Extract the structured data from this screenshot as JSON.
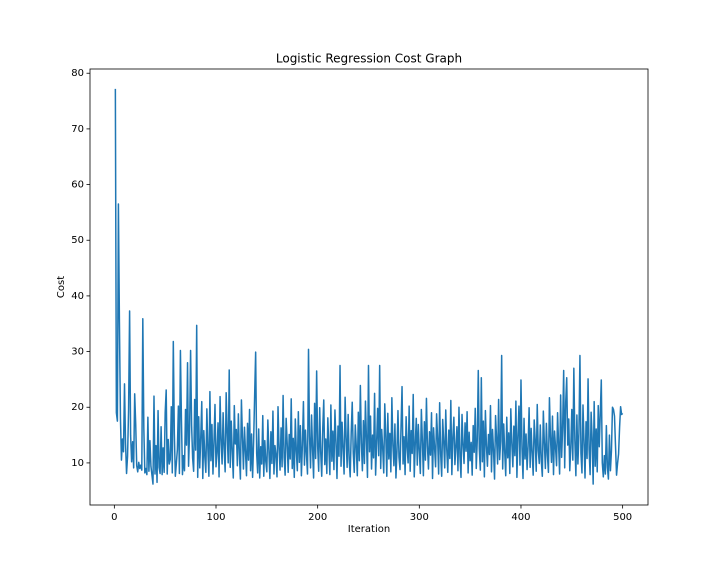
{
  "chart_data": {
    "type": "line",
    "title": "Logistic Regression Cost Graph",
    "x_label": "Iteration",
    "y_label": "Cost",
    "color": "#1f77b4",
    "xlim": [
      -23.95,
      524.95
    ],
    "xticks": [
      0,
      100,
      200,
      300,
      400,
      500
    ],
    "ylim": [
      2.44,
      80.76
    ],
    "yticks": [
      10,
      20,
      30,
      40,
      50,
      60,
      70,
      80
    ],
    "grid": false,
    "x": [
      1,
      2,
      3,
      4,
      5,
      6,
      7,
      8,
      9,
      10,
      11,
      12,
      13,
      14,
      15,
      16,
      17,
      18,
      19,
      20,
      21,
      22,
      23,
      24,
      25,
      26,
      27,
      28,
      29,
      30,
      31,
      32,
      33,
      34,
      35,
      36,
      37,
      38,
      39,
      40,
      41,
      42,
      43,
      44,
      45,
      46,
      47,
      48,
      49,
      50,
      51,
      52,
      53,
      54,
      55,
      56,
      57,
      58,
      59,
      60,
      61,
      62,
      63,
      64,
      65,
      66,
      67,
      68,
      69,
      70,
      71,
      72,
      73,
      74,
      75,
      76,
      77,
      78,
      79,
      80,
      81,
      82,
      83,
      84,
      85,
      86,
      87,
      88,
      89,
      90,
      91,
      92,
      93,
      94,
      95,
      96,
      97,
      98,
      99,
      100,
      101,
      102,
      103,
      104,
      105,
      106,
      107,
      108,
      109,
      110,
      111,
      112,
      113,
      114,
      115,
      116,
      117,
      118,
      119,
      120,
      121,
      122,
      123,
      124,
      125,
      126,
      127,
      128,
      129,
      130,
      131,
      132,
      133,
      134,
      135,
      136,
      137,
      138,
      139,
      140,
      141,
      142,
      143,
      144,
      145,
      146,
      147,
      148,
      149,
      150,
      151,
      152,
      153,
      154,
      155,
      156,
      157,
      158,
      159,
      160,
      161,
      162,
      163,
      164,
      165,
      166,
      167,
      168,
      169,
      170,
      171,
      172,
      173,
      174,
      175,
      176,
      177,
      178,
      179,
      180,
      181,
      182,
      183,
      184,
      185,
      186,
      187,
      188,
      189,
      190,
      191,
      192,
      193,
      194,
      195,
      196,
      197,
      198,
      199,
      200,
      201,
      202,
      203,
      204,
      205,
      206,
      207,
      208,
      209,
      210,
      211,
      212,
      213,
      214,
      215,
      216,
      217,
      218,
      219,
      220,
      221,
      222,
      223,
      224,
      225,
      226,
      227,
      228,
      229,
      230,
      231,
      232,
      233,
      234,
      235,
      236,
      237,
      238,
      239,
      240,
      241,
      242,
      243,
      244,
      245,
      246,
      247,
      248,
      249,
      250,
      251,
      252,
      253,
      254,
      255,
      256,
      257,
      258,
      259,
      260,
      261,
      262,
      263,
      264,
      265,
      266,
      267,
      268,
      269,
      270,
      271,
      272,
      273,
      274,
      275,
      276,
      277,
      278,
      279,
      280,
      281,
      282,
      283,
      284,
      285,
      286,
      287,
      288,
      289,
      290,
      291,
      292,
      293,
      294,
      295,
      296,
      297,
      298,
      299,
      300,
      301,
      302,
      303,
      304,
      305,
      306,
      307,
      308,
      309,
      310,
      311,
      312,
      313,
      314,
      315,
      316,
      317,
      318,
      319,
      320,
      321,
      322,
      323,
      324,
      325,
      326,
      327,
      328,
      329,
      330,
      331,
      332,
      333,
      334,
      335,
      336,
      337,
      338,
      339,
      340,
      341,
      342,
      343,
      344,
      345,
      346,
      347,
      348,
      349,
      350,
      351,
      352,
      353,
      354,
      355,
      356,
      357,
      358,
      359,
      360,
      361,
      362,
      363,
      364,
      365,
      366,
      367,
      368,
      369,
      370,
      371,
      372,
      373,
      374,
      375,
      376,
      377,
      378,
      379,
      380,
      381,
      382,
      383,
      384,
      385,
      386,
      387,
      388,
      389,
      390,
      391,
      392,
      393,
      394,
      395,
      396,
      397,
      398,
      399,
      400,
      401,
      402,
      403,
      404,
      405,
      406,
      407,
      408,
      409,
      410,
      411,
      412,
      413,
      414,
      415,
      416,
      417,
      418,
      419,
      420,
      421,
      422,
      423,
      424,
      425,
      426,
      427,
      428,
      429,
      430,
      431,
      432,
      433,
      434,
      435,
      436,
      437,
      438,
      439,
      440,
      441,
      442,
      443,
      444,
      445,
      446,
      447,
      448,
      449,
      450,
      451,
      452,
      453,
      454,
      455,
      456,
      457,
      458,
      459,
      460,
      461,
      462,
      463,
      464,
      465,
      466,
      467,
      468,
      469,
      470,
      471,
      472,
      473,
      474,
      475,
      476,
      477,
      478,
      479,
      480,
      481,
      482,
      483,
      484,
      485,
      486,
      487,
      488,
      489,
      490,
      491,
      492,
      493,
      494,
      495,
      496,
      497,
      498,
      499,
      500
    ],
    "values": [
      77.2,
      19.0,
      17.5,
      56.5,
      35.2,
      18.0,
      10.5,
      14.3,
      12.0,
      24.2,
      13.5,
      8.1,
      11.2,
      19.5,
      37.3,
      15.0,
      10.2,
      13.8,
      9.1,
      22.4,
      17.0,
      9.5,
      8.4,
      10.1,
      9.0,
      9.6,
      8.7,
      35.9,
      16.2,
      8.2,
      9.0,
      7.9,
      18.2,
      8.5,
      14.0,
      9.4,
      7.8,
      6.2,
      22.0,
      8.0,
      13.1,
      6.5,
      19.4,
      9.2,
      8.1,
      16.5,
      7.9,
      12.7,
      8.3,
      19.0,
      23.1,
      8.0,
      14.2,
      9.8,
      10.6,
      20.1,
      8.2,
      31.8,
      15.3,
      7.6,
      9.9,
      12.4,
      20.2,
      8.1,
      30.2,
      17.8,
      7.9,
      11.3,
      8.6,
      19.6,
      13.2,
      28.0,
      9.4,
      15.5,
      30.2,
      16.8,
      10.9,
      8.5,
      21.4,
      12.3,
      34.7,
      7.4,
      18.3,
      9.1,
      14.6,
      21.0,
      7.2,
      15.8,
      11.1,
      8.3,
      19.7,
      12.5,
      7.6,
      22.8,
      10.4,
      16.9,
      8.0,
      13.7,
      20.5,
      9.3,
      11.8,
      17.2,
      7.5,
      21.9,
      14.1,
      9.8,
      19.0,
      12.6,
      8.4,
      22.6,
      15.3,
      10.0,
      26.7,
      9.2,
      17.5,
      12.1,
      7.3,
      20.3,
      13.4,
      16.0,
      9.5,
      18.8,
      11.6,
      7.1,
      21.3,
      14.7,
      8.9,
      16.4,
      12.0,
      7.7,
      17.1,
      10.5,
      19.6,
      8.6,
      15.2,
      7.4,
      13.8,
      22.0,
      29.9,
      11.7,
      8.2,
      16.1,
      7.3,
      12.9,
      9.8,
      18.5,
      7.6,
      14.0,
      10.2,
      8.4,
      17.7,
      12.3,
      7.2,
      15.6,
      9.9,
      19.3,
      8.0,
      13.1,
      11.4,
      7.5,
      20.1,
      12.8,
      8.7,
      16.3,
      9.3,
      22.1,
      11.0,
      7.8,
      18.0,
      13.6,
      8.3,
      15.1,
      10.7,
      21.5,
      9.0,
      14.4,
      7.4,
      17.9,
      12.2,
      8.6,
      19.2,
      10.1,
      16.7,
      7.7,
      13.3,
      21.0,
      9.6,
      15.9,
      11.5,
      8.0,
      30.4,
      14.8,
      9.1,
      18.6,
      12.4,
      7.3,
      20.7,
      10.8,
      26.5,
      13.0,
      8.5,
      19.9,
      11.9,
      7.6,
      16.2,
      21.3,
      9.7,
      14.3,
      8.1,
      18.1,
      12.7,
      7.9,
      20.4,
      10.3,
      15.7,
      8.8,
      19.5,
      13.9,
      7.2,
      16.6,
      11.2,
      27.5,
      9.4,
      17.3,
      12.5,
      8.0,
      21.8,
      14.5,
      9.2,
      18.7,
      10.6,
      7.5,
      15.4,
      20.9,
      11.8,
      8.3,
      16.8,
      12.9,
      7.7,
      19.1,
      10.4,
      23.9,
      13.5,
      8.6,
      17.6,
      9.9,
      21.1,
      14.2,
      7.4,
      27.5,
      12.0,
      18.4,
      8.9,
      15.0,
      10.9,
      22.5,
      7.8,
      13.6,
      19.8,
      11.3,
      27.5,
      9.0,
      16.0,
      12.6,
      8.2,
      20.6,
      14.9,
      7.6,
      18.9,
      10.7,
      15.3,
      8.4,
      21.7,
      13.2,
      9.5,
      17.0,
      7.3,
      12.1,
      19.4,
      11.0,
      8.8,
      16.4,
      23.7,
      9.8,
      14.7,
      7.9,
      18.3,
      12.8,
      10.0,
      20.2,
      8.5,
      15.8,
      11.7,
      22.3,
      7.5,
      13.4,
      18.0,
      9.6,
      16.9,
      12.2,
      8.1,
      19.6,
      14.0,
      7.7,
      17.4,
      10.5,
      21.6,
      13.0,
      8.9,
      15.6,
      11.4,
      19.0,
      7.2,
      16.3,
      12.7,
      9.3,
      18.8,
      14.4,
      8.0,
      20.8,
      11.6,
      7.6,
      17.8,
      13.8,
      9.1,
      19.5,
      12.4,
      8.3,
      15.9,
      10.8,
      21.2,
      7.9,
      14.6,
      18.2,
      9.7,
      12.9,
      16.5,
      8.6,
      20.0,
      11.1,
      7.4,
      18.7,
      13.3,
      9.9,
      17.2,
      12.1,
      19.2,
      8.2,
      15.5,
      10.4,
      13.7,
      7.8,
      16.7,
      11.9,
      19.8,
      9.0,
      14.1,
      26.6,
      12.5,
      8.7,
      25.3,
      10.2,
      17.5,
      7.5,
      19.4,
      13.1,
      9.4,
      15.1,
      11.5,
      20.3,
      8.4,
      16.0,
      12.3,
      7.1,
      18.5,
      14.3,
      9.8,
      21.4,
      10.6,
      13.9,
      29.3,
      8.9,
      17.0,
      12.0,
      7.7,
      18.2,
      10.9,
      15.4,
      8.1,
      19.7,
      13.5,
      9.3,
      16.6,
      11.3,
      21.1,
      7.4,
      14.8,
      20.2,
      9.6,
      24.9,
      12.6,
      7.2,
      18.0,
      10.7,
      15.2,
      8.8,
      13.0,
      19.9,
      9.2,
      16.2,
      11.8,
      7.8,
      17.7,
      14.1,
      8.5,
      20.5,
      12.2,
      9.9,
      16.8,
      10.3,
      7.6,
      19.3,
      13.6,
      9.0,
      17.1,
      11.4,
      8.3,
      21.7,
      14.6,
      10.1,
      18.4,
      7.9,
      15.7,
      12.8,
      9.5,
      19.0,
      13.3,
      8.0,
      22.2,
      11.0,
      16.4,
      26.6,
      9.1,
      20.9,
      25.3,
      13.2,
      17.9,
      8.6,
      12.7,
      19.6,
      10.5,
      27.0,
      14.0,
      7.7,
      18.6,
      9.8,
      15.3,
      29.3,
      11.7,
      8.2,
      20.4,
      13.9,
      7.3,
      17.4,
      10.8,
      25.1,
      12.4,
      7.9,
      19.1,
      14.5,
      6.2,
      21.0,
      9.4,
      16.1,
      8.4,
      20.3,
      12.9,
      18.8,
      24.9,
      10.0,
      7.5,
      11.3,
      8.0,
      16.7,
      9.2,
      7.1,
      15.0,
      8.6,
      12.2,
      20.0,
      19.6,
      18.4,
      13.0,
      7.8,
      9.9,
      11.6,
      16.4,
      20.1,
      18.7,
      18.9
    ]
  }
}
